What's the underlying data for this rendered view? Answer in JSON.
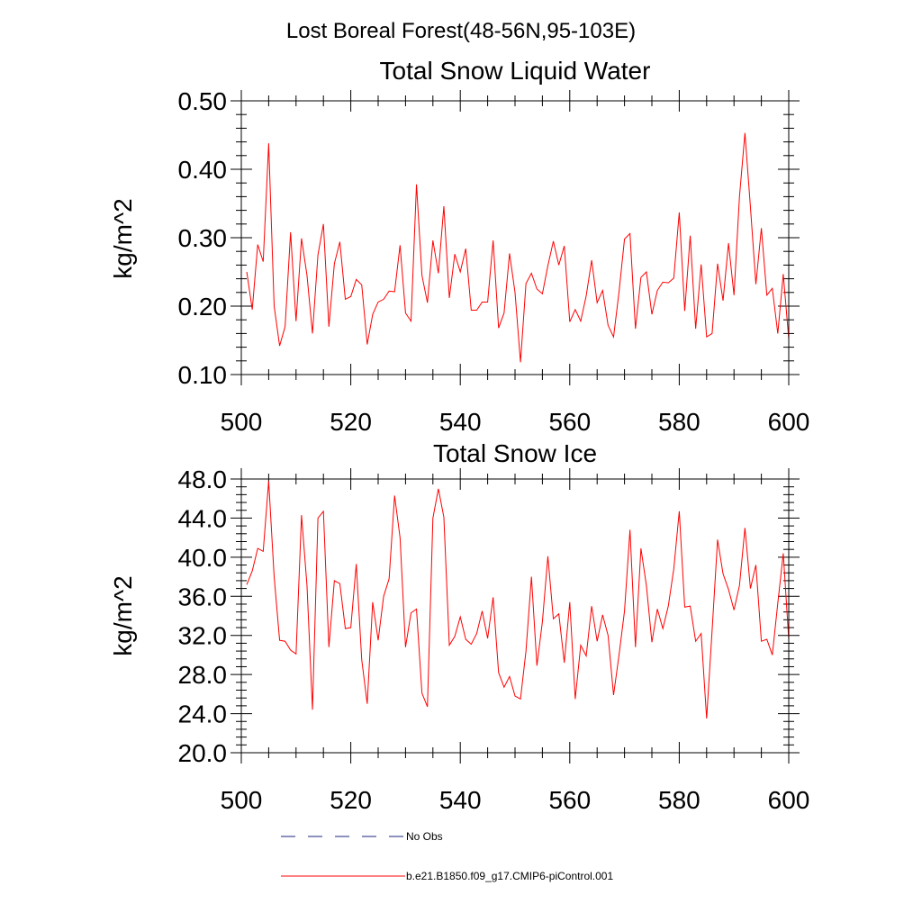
{
  "figure": {
    "title": "Lost Boreal Forest(48-56N,95-103E)"
  },
  "colors": {
    "model_line": "#ff0000",
    "obs_line": "#1a237e",
    "axis": "#000000"
  },
  "chart_data": [
    {
      "type": "line",
      "title": "Total Snow Liquid Water",
      "xlabel": "",
      "ylabel": "kg/m^2",
      "xlim": [
        500,
        600
      ],
      "ylim": [
        0.1,
        0.5
      ],
      "xticks": [
        500,
        520,
        540,
        560,
        580,
        600
      ],
      "xtick_labels": [
        "500",
        "520",
        "540",
        "560",
        "580",
        "600"
      ],
      "yticks": [
        0.1,
        0.2,
        0.3,
        0.4,
        0.5
      ],
      "ytick_labels": [
        "0.10",
        "0.20",
        "0.30",
        "0.40",
        "0.50"
      ],
      "series": [
        {
          "name": "b.e21.B1850.f09_g17.CMIP6-piControl.001",
          "x_start": 501,
          "x_step": 1,
          "values": [
            0.25,
            0.195,
            0.29,
            0.265,
            0.438,
            0.2,
            0.142,
            0.17,
            0.308,
            0.178,
            0.299,
            0.245,
            0.16,
            0.275,
            0.32,
            0.17,
            0.262,
            0.294,
            0.21,
            0.214,
            0.239,
            0.231,
            0.144,
            0.188,
            0.206,
            0.21,
            0.222,
            0.221,
            0.289,
            0.19,
            0.178,
            0.378,
            0.245,
            0.205,
            0.296,
            0.248,
            0.346,
            0.212,
            0.276,
            0.25,
            0.284,
            0.194,
            0.194,
            0.206,
            0.206,
            0.296,
            0.168,
            0.19,
            0.277,
            0.22,
            0.118,
            0.233,
            0.248,
            0.225,
            0.218,
            0.259,
            0.295,
            0.26,
            0.288,
            0.177,
            0.195,
            0.178,
            0.215,
            0.267,
            0.205,
            0.223,
            0.172,
            0.155,
            0.221,
            0.298,
            0.306,
            0.167,
            0.242,
            0.25,
            0.188,
            0.223,
            0.235,
            0.234,
            0.241,
            0.337,
            0.193,
            0.303,
            0.167,
            0.261,
            0.155,
            0.16,
            0.262,
            0.208,
            0.292,
            0.216,
            0.36,
            0.453,
            0.345,
            0.232,
            0.314,
            0.216,
            0.226,
            0.16,
            0.247,
            0.152
          ]
        }
      ]
    },
    {
      "type": "line",
      "title": "Total Snow Ice",
      "xlabel": "",
      "ylabel": "kg/m^2",
      "xlim": [
        500,
        600
      ],
      "ylim": [
        20.0,
        48.0
      ],
      "xticks": [
        500,
        520,
        540,
        560,
        580,
        600
      ],
      "xtick_labels": [
        "500",
        "520",
        "540",
        "560",
        "580",
        "600"
      ],
      "yticks": [
        20.0,
        24.0,
        28.0,
        32.0,
        36.0,
        40.0,
        44.0,
        48.0
      ],
      "ytick_labels": [
        "20.0",
        "24.0",
        "28.0",
        "32.0",
        "36.0",
        "40.0",
        "44.0",
        "48.0"
      ],
      "series": [
        {
          "name": "b.e21.B1850.f09_g17.CMIP6-piControl.001",
          "x_start": 501,
          "x_step": 1,
          "values": [
            37.2,
            38.6,
            40.9,
            40.6,
            47.8,
            38.0,
            31.5,
            31.4,
            30.5,
            30.1,
            44.3,
            37.1,
            24.4,
            44.0,
            44.7,
            30.8,
            37.6,
            37.3,
            32.7,
            32.8,
            39.3,
            29.5,
            25.0,
            35.4,
            31.5,
            36.0,
            37.8,
            46.3,
            42.0,
            30.8,
            34.3,
            34.7,
            26.1,
            24.7,
            44.0,
            47.0,
            44.1,
            31.0,
            31.9,
            33.9,
            31.6,
            31.1,
            32.2,
            34.5,
            31.7,
            35.9,
            28.2,
            26.7,
            27.8,
            25.8,
            25.5,
            30.4,
            38.0,
            28.9,
            33.4,
            40.1,
            33.7,
            34.2,
            29.2,
            35.4,
            25.5,
            31.0,
            29.9,
            35.0,
            31.4,
            34.1,
            32.0,
            25.9,
            30.0,
            34.5,
            42.8,
            30.8,
            40.9,
            37.1,
            31.3,
            34.7,
            32.7,
            35.0,
            38.8,
            44.7,
            34.9,
            35.0,
            31.4,
            32.2,
            23.5,
            32.5,
            41.8,
            38.3,
            36.7,
            34.6,
            37.1,
            43.0,
            36.8,
            39.2,
            31.4,
            31.6,
            30.0,
            35.3,
            40.4,
            31.6
          ]
        }
      ]
    }
  ],
  "legend": {
    "placement": "bottom-center",
    "entries": [
      {
        "label": "No Obs",
        "color": "#1a237e",
        "style": "dashed"
      },
      {
        "label": "b.e21.B1850.f09_g17.CMIP6-piControl.001",
        "color": "#ff0000",
        "style": "solid"
      }
    ]
  }
}
